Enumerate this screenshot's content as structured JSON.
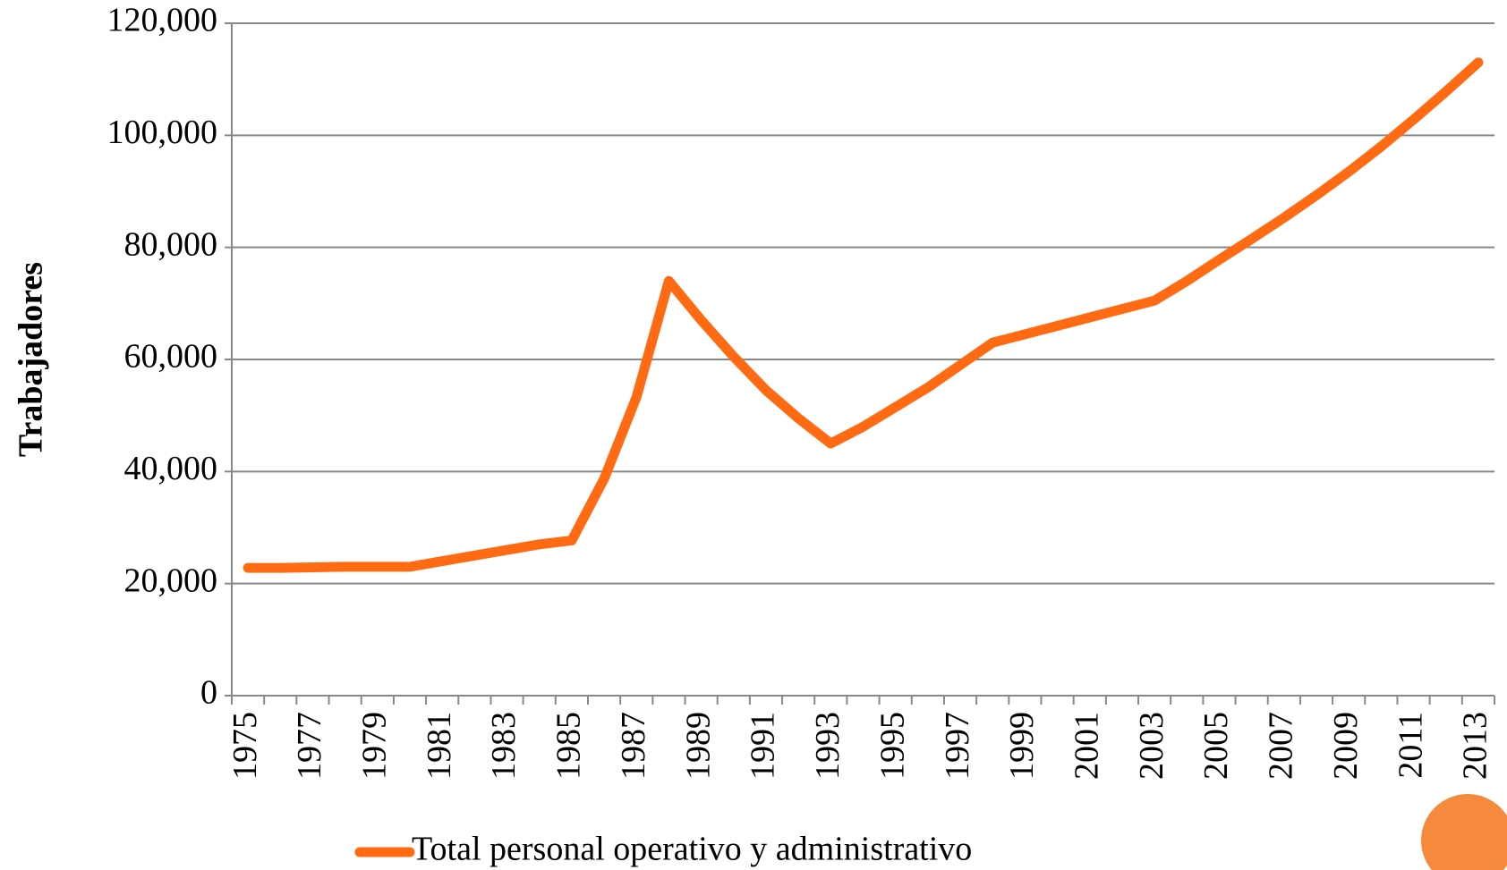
{
  "chart_data": {
    "type": "line",
    "y_label": "Trabajadores",
    "categories": [
      "1975",
      null,
      "1977",
      null,
      "1979",
      null,
      "1981",
      null,
      "1983",
      null,
      "1985",
      null,
      "1987",
      null,
      "1989",
      null,
      "1991",
      null,
      "1993",
      null,
      "1995",
      null,
      "1997",
      null,
      "1999",
      null,
      "2001",
      null,
      "2003",
      null,
      "2005",
      null,
      "2007",
      null,
      "2009",
      null,
      "2011",
      null,
      "2013"
    ],
    "series": [
      {
        "name": "Total personal operativo y administrativo",
        "color": "#ff6a13",
        "values": [
          22800,
          22800,
          22900,
          23000,
          23000,
          23000,
          24000,
          25000,
          26000,
          27000,
          27700,
          38700,
          53300,
          74000,
          67000,
          60500,
          54500,
          49500,
          45000,
          48000,
          51500,
          55000,
          59000,
          63000,
          64500,
          66000,
          67500,
          69000,
          70500,
          74000,
          77800,
          81500,
          85300,
          89300,
          93500,
          98000,
          102800,
          107800,
          113000
        ]
      }
    ],
    "ylim": [
      0,
      120000
    ],
    "yticks": [
      0,
      {
        "value": 20000,
        "label": "20,000"
      },
      {
        "value": 40000,
        "label": "40,000"
      },
      {
        "value": 60000,
        "label": "60,000"
      },
      {
        "value": 80000,
        "label": "80,000"
      },
      {
        "value": 100000,
        "label": "100,000"
      },
      {
        "value": 120000,
        "label": "120,000"
      }
    ],
    "grid": true,
    "legend": "bottom"
  }
}
